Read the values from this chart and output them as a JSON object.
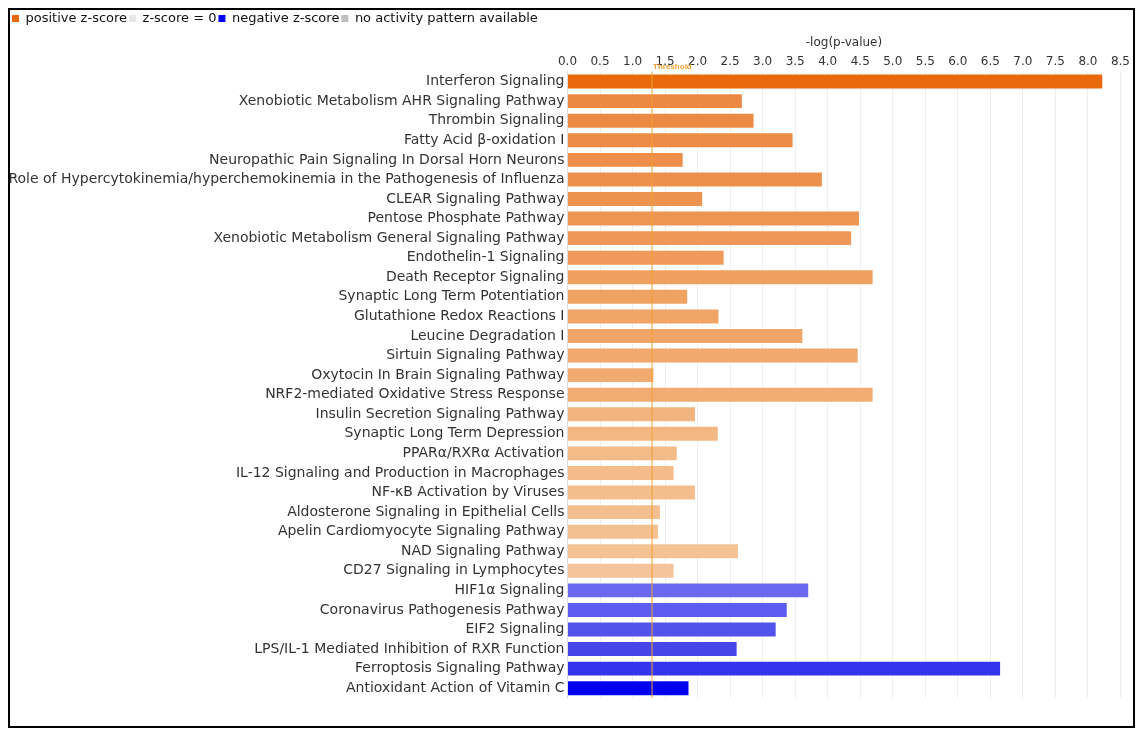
{
  "chart_data": {
    "type": "bar",
    "orientation": "horizontal",
    "stacked": true,
    "xlabel": "-log(p-value)",
    "categories": [
      "Interferon Signaling",
      "Xenobiotic Metabolism AHR Signaling Pathway",
      "Thrombin Signaling",
      "Fatty Acid β-oxidation I",
      "Neuropathic Pain Signaling In Dorsal Horn Neurons",
      "Role of Hypercytokinemia/hyperchemokinemia in the Pathogenesis of Influenza",
      "CLEAR Signaling Pathway",
      "Pentose Phosphate Pathway",
      "Xenobiotic Metabolism General Signaling Pathway",
      "Endothelin-1 Signaling",
      "Death Receptor Signaling",
      "Synaptic Long Term Potentiation",
      "Glutathione Redox Reactions I",
      "Leucine Degradation I",
      "Sirtuin Signaling Pathway",
      "Oxytocin In Brain Signaling Pathway",
      "NRF2-mediated Oxidative Stress Response",
      "Insulin Secretion Signaling Pathway",
      "Synaptic Long Term Depression",
      "PPARα/RXRα Activation",
      "IL-12 Signaling and Production in Macrophages",
      "NF-κB Activation by Viruses",
      "Aldosterone Signaling in Epithelial Cells",
      "Apelin Cardiomyocyte Signaling Pathway",
      "NAD Signaling Pathway",
      "CD27 Signaling in Lymphocytes",
      "HIF1α Signaling",
      "Coronavirus Pathogenesis Pathway",
      "EIF2 Signaling",
      "LPS/IL-1 Mediated Inhibition of RXR Function",
      "Ferroptosis Signaling Pathway",
      "Antioxidant Action of Vitamin C"
    ],
    "series": [
      {
        "name": "positive z-score",
        "color": "#e8690b",
        "values": [
          8.22,
          2.68,
          2.86,
          3.46,
          1.77,
          3.91,
          2.07,
          4.48,
          4.36,
          2.4,
          4.69,
          1.84,
          2.32,
          3.61,
          4.46,
          1.32,
          4.69,
          1.96,
          2.31,
          1.68,
          1.63,
          1.96,
          1.42,
          1.39,
          2.62,
          1.63,
          null,
          null,
          null,
          null,
          null,
          null
        ],
        "colors": [
          "#e8690b",
          "#ec8841",
          "#ec8a43",
          "#ed8c46",
          "#ed8e49",
          "#ed904c",
          "#ee924f",
          "#ee9552",
          "#ef9756",
          "#ef9a5a",
          "#efa05e",
          "#f0a262",
          "#f0a466",
          "#f0a669",
          "#f0a86c",
          "#f1aa6f",
          "#f1ac72",
          "#f2b57f",
          "#f2b782",
          "#f3bb88",
          "#f3bc8a",
          "#f3be8c",
          "#f4bf8f",
          "#f4c091",
          "#f4c293",
          "#f5c49a",
          null,
          null,
          null,
          null,
          null,
          null
        ]
      },
      {
        "name": "z-score = 0",
        "color": "#e6e6e6",
        "values": [
          null,
          null,
          null,
          null,
          null,
          null,
          null,
          null,
          null,
          null,
          null,
          null,
          null,
          null,
          null,
          null,
          null,
          null,
          null,
          null,
          null,
          null,
          null,
          null,
          null,
          null,
          null,
          null,
          null,
          null,
          null,
          null
        ]
      },
      {
        "name": "negative z-score",
        "color": "#0000ee",
        "values": [
          null,
          null,
          null,
          null,
          null,
          null,
          null,
          null,
          null,
          null,
          null,
          null,
          null,
          null,
          null,
          null,
          null,
          null,
          null,
          null,
          null,
          null,
          null,
          null,
          null,
          null,
          3.7,
          3.37,
          3.2,
          2.6,
          6.65,
          1.86
        ],
        "colors": [
          null,
          null,
          null,
          null,
          null,
          null,
          null,
          null,
          null,
          null,
          null,
          null,
          null,
          null,
          null,
          null,
          null,
          null,
          null,
          null,
          null,
          null,
          null,
          null,
          null,
          null,
          "#6868f0",
          "#5c5cf0",
          "#5252ec",
          "#4646e8",
          "#3434ec",
          "#0000ee"
        ]
      },
      {
        "name": "no activity pattern available",
        "color": "#bfbfbf",
        "values": [
          null,
          null,
          null,
          null,
          null,
          null,
          null,
          null,
          null,
          null,
          null,
          null,
          null,
          null,
          null,
          null,
          null,
          null,
          null,
          null,
          null,
          null,
          null,
          null,
          null,
          null,
          null,
          null,
          null,
          null,
          null,
          null
        ]
      }
    ],
    "xlim": [
      0,
      8.5
    ],
    "xticks": [
      {
        "value": 0,
        "label": "0.0"
      },
      {
        "value": 0.5,
        "label": "0.5"
      },
      {
        "value": 1,
        "label": "1.0"
      },
      {
        "value": 1.5,
        "label": "1.5"
      },
      {
        "value": 2,
        "label": "2.0"
      },
      {
        "value": 2.5,
        "label": "2.5"
      },
      {
        "value": 3,
        "label": "3.0"
      },
      {
        "value": 3.5,
        "label": "3.5"
      },
      {
        "value": 4,
        "label": "4.0"
      },
      {
        "value": 4.5,
        "label": "4.5"
      },
      {
        "value": 5,
        "label": "5.0"
      },
      {
        "value": 5.5,
        "label": "5.5"
      },
      {
        "value": 6,
        "label": "6.0"
      },
      {
        "value": 6.5,
        "label": "6.5"
      },
      {
        "value": 7,
        "label": "7.0"
      },
      {
        "value": 7.5,
        "label": "7.5"
      },
      {
        "value": 8,
        "label": "8.0"
      },
      {
        "value": 8.5,
        "label": "8.5"
      }
    ],
    "ref_lines": [
      {
        "axis": "x",
        "value": 1.3,
        "label": "Threshold",
        "color": "#f0a030"
      }
    ],
    "grid": "x",
    "legend": "top left"
  }
}
